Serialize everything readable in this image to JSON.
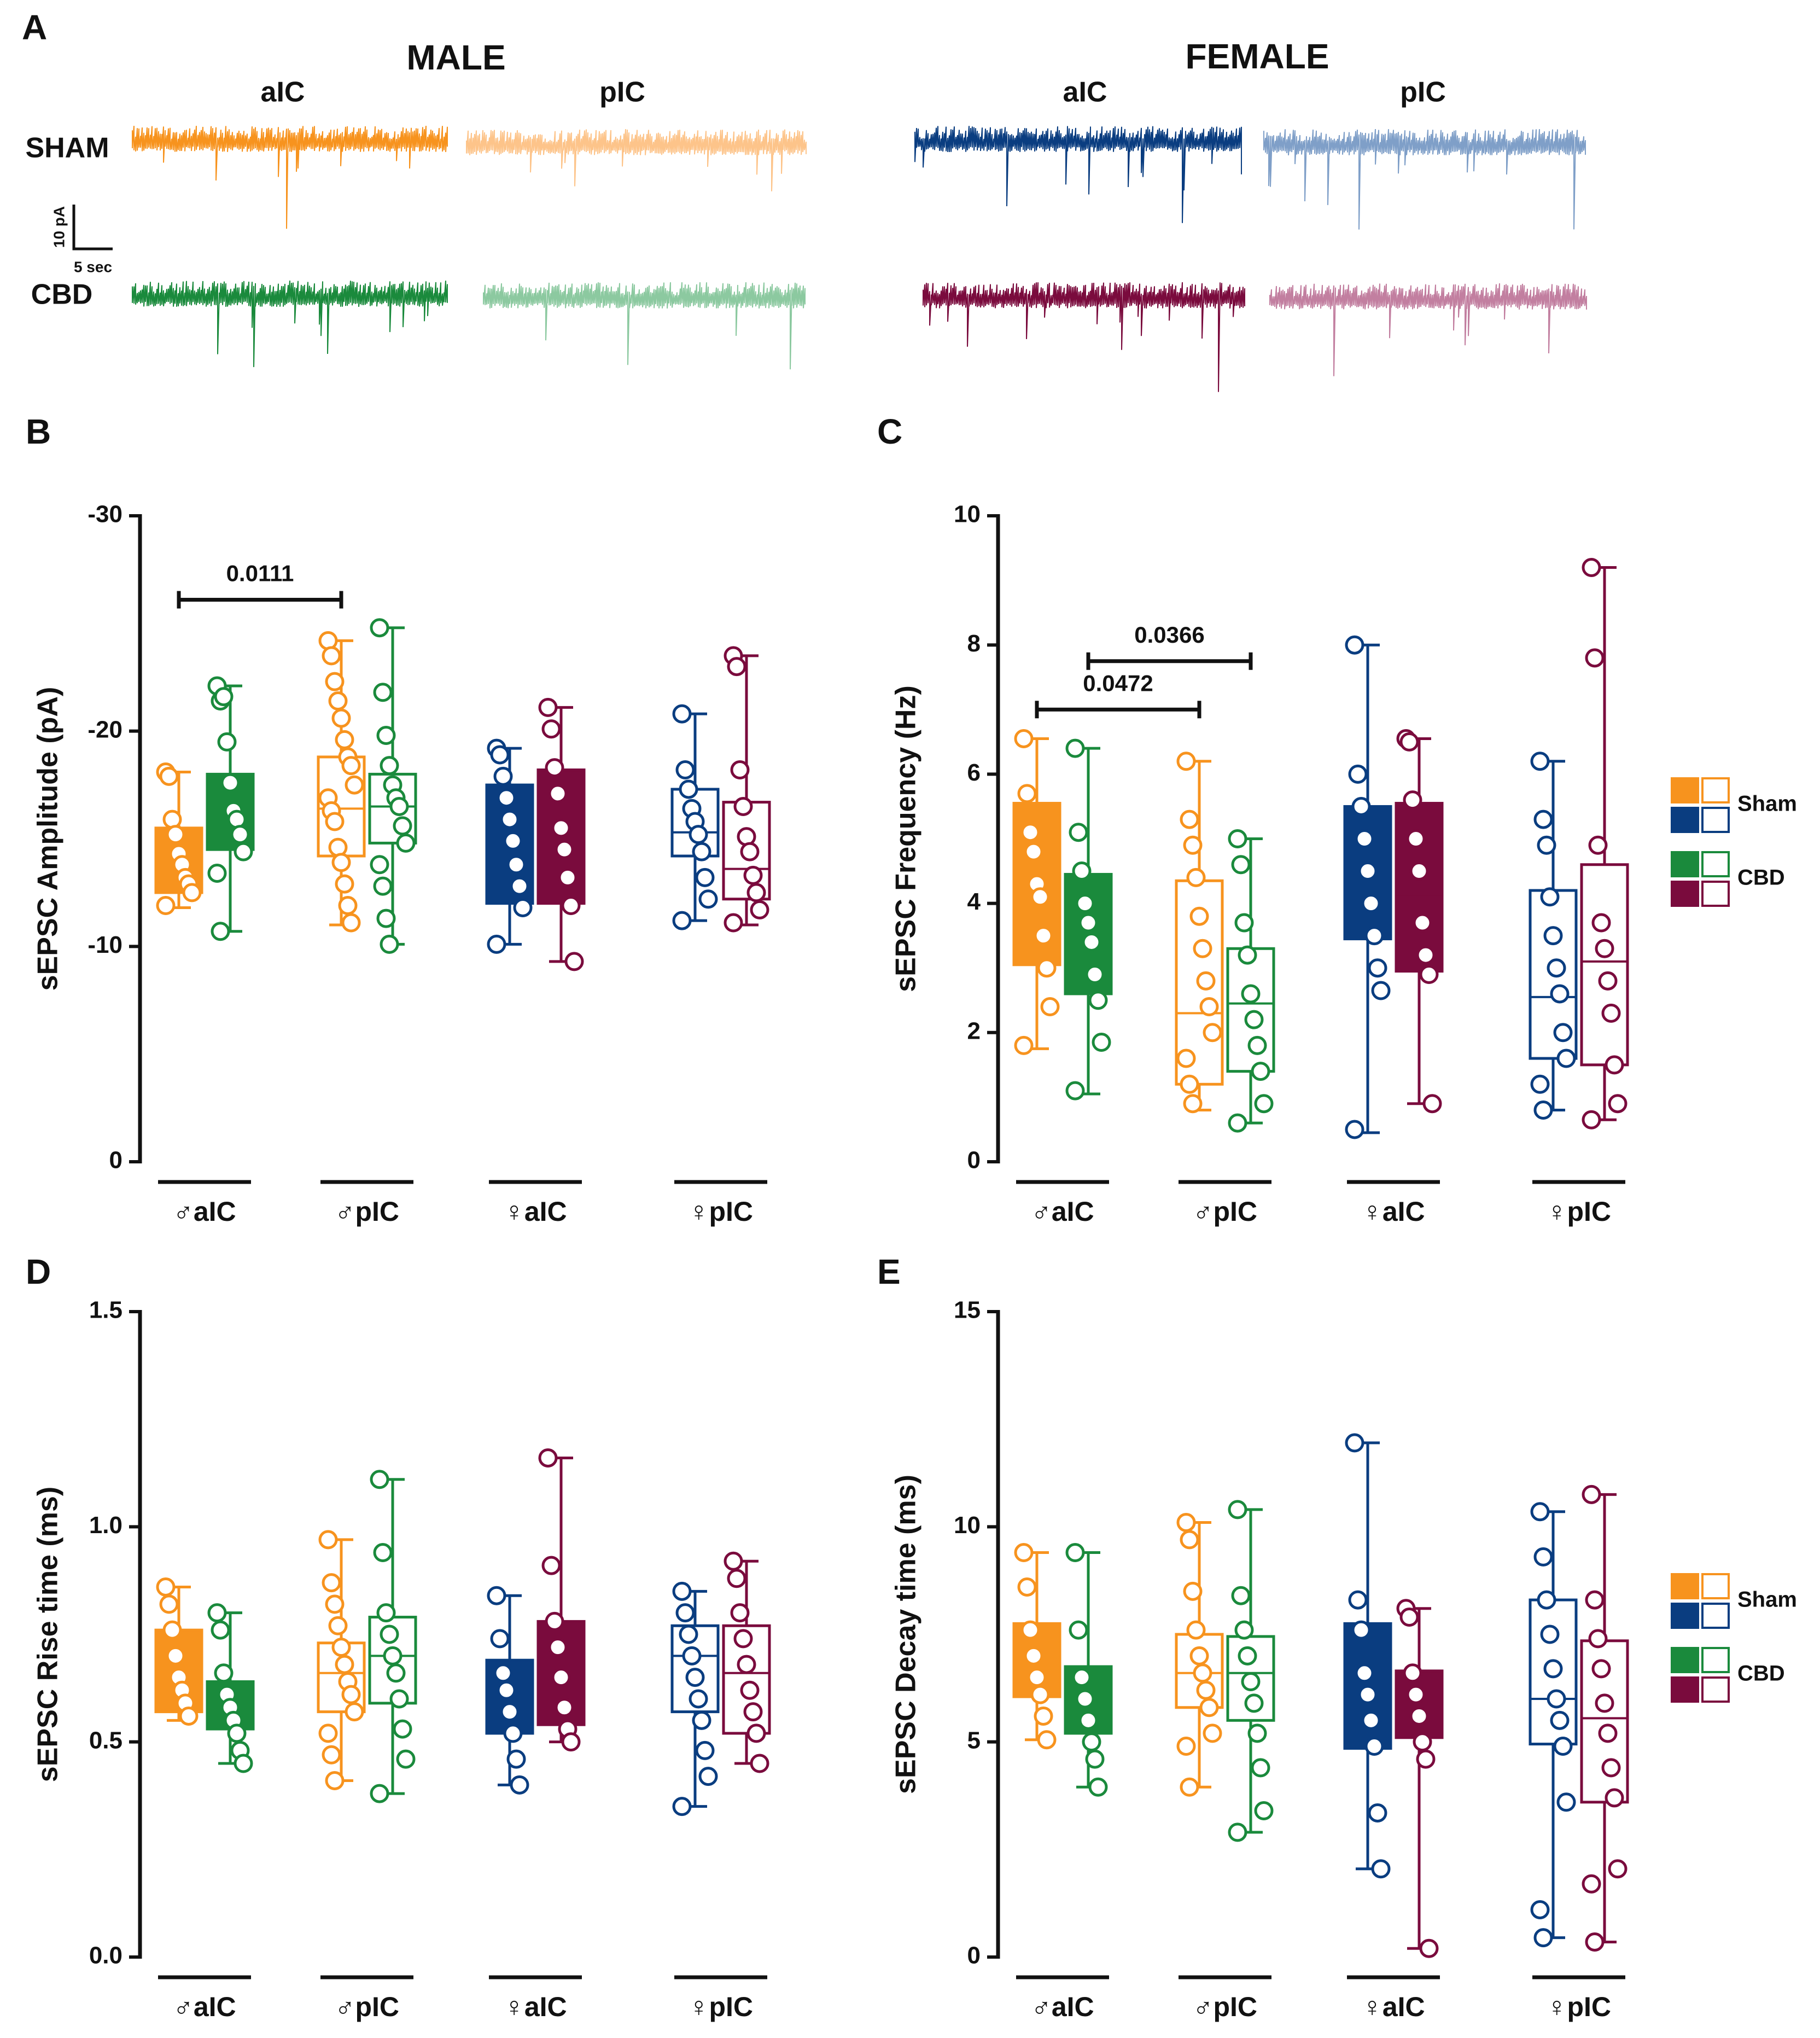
{
  "panel_a": {
    "label": "A",
    "sexes": [
      "MALE",
      "FEMALE"
    ],
    "regions": [
      "aIC",
      "pIC",
      "aIC",
      "pIC"
    ],
    "rows": [
      "SHAM",
      "CBD"
    ],
    "scale_y": "10 pA",
    "scale_x": "5 sec"
  },
  "chart_data": [
    {
      "type": "box",
      "panel": "B",
      "ylabel": "sEPSC Amplitude  (pA)",
      "ylim": [
        0,
        -30
      ],
      "yticks": [
        0,
        -10,
        -20,
        -30
      ],
      "categories": [
        "♂aIC",
        "♂pIC",
        "♀aIC",
        "♀pIC"
      ],
      "boxes": [
        {
          "color": "#f7931e",
          "filled": true,
          "stats": [
            -11.8,
            -12.5,
            -13.8,
            -15.5,
            -18.1
          ],
          "points": [
            -18.1,
            -17.9,
            -15.9,
            -15.2,
            -14.3,
            -13.8,
            -13.2,
            -12.9,
            -12.5,
            -11.9
          ]
        },
        {
          "color": "#1a8a3c",
          "filled": true,
          "stats": [
            -10.7,
            -14.5,
            -16,
            -18,
            -22.1
          ],
          "points": [
            -22.1,
            -21.4,
            -21.6,
            -19.5,
            -17.6,
            -16.3,
            -15.9,
            -15.2,
            -14.4,
            -13.4,
            -10.7
          ]
        },
        {
          "color": "#f7931e",
          "filled": false,
          "stats": [
            -11,
            -14.2,
            -16.4,
            -18.8,
            -24.2
          ],
          "points": [
            -24.2,
            -23.5,
            -22.3,
            -21.4,
            -20.6,
            -19.6,
            -18.8,
            -18.4,
            -17.5,
            -16.9,
            -16.3,
            -15.8,
            -14.6,
            -13.9,
            -12.9,
            -11.9,
            -11.1
          ]
        },
        {
          "color": "#1a8a3c",
          "filled": false,
          "stats": [
            -10.1,
            -14.8,
            -16.5,
            -18,
            -24.8
          ],
          "points": [
            -24.8,
            -21.8,
            -19.8,
            -18.4,
            -17.5,
            -16.9,
            -16.5,
            -15.6,
            -14.8,
            -13.8,
            -12.8,
            -11.3,
            -10.1
          ]
        },
        {
          "color": "#0a3d80",
          "filled": true,
          "stats": [
            -10.1,
            -12,
            -14.8,
            -17.5,
            -19.2
          ],
          "points": [
            -19.2,
            -18.9,
            -17.9,
            -16.9,
            -15.9,
            -14.9,
            -13.8,
            -12.8,
            -11.8,
            -10.1
          ]
        },
        {
          "color": "#7a0b3d",
          "filled": true,
          "stats": [
            -9.3,
            -12,
            -14.3,
            -18.2,
            -21.1
          ],
          "points": [
            -21.1,
            -20.1,
            -18.3,
            -17.1,
            -15.5,
            -14.5,
            -13.2,
            -11.9,
            -9.3
          ]
        },
        {
          "color": "#0a3d80",
          "filled": false,
          "stats": [
            -11.2,
            -14.2,
            -15.3,
            -17.3,
            -20.8
          ],
          "points": [
            -20.8,
            -18.2,
            -17.3,
            -16.4,
            -15.8,
            -15.2,
            -14.4,
            -13.2,
            -12.2,
            -11.2
          ]
        },
        {
          "color": "#7a0b3d",
          "filled": false,
          "stats": [
            -11,
            -12.2,
            -13.6,
            -16.7,
            -23.5
          ],
          "points": [
            -23.5,
            -23,
            -18.2,
            -16.5,
            -15.1,
            -14.4,
            -13.3,
            -12.5,
            -11.7,
            -11.1
          ]
        }
      ],
      "annotations": [
        {
          "label": "0.0111",
          "boxes": [
            0,
            2
          ],
          "y": -26.1
        }
      ]
    },
    {
      "type": "box",
      "panel": "C",
      "ylabel": "sEPSC Frequency  (Hz)",
      "ylim": [
        0,
        10
      ],
      "yticks": [
        0,
        2,
        4,
        6,
        8,
        10
      ],
      "categories": [
        "♂aIC",
        "♂pIC",
        "♀aIC",
        "♀pIC"
      ],
      "boxes": [
        {
          "color": "#f7931e",
          "filled": true,
          "stats": [
            1.75,
            3.05,
            4.2,
            5.55,
            6.55
          ],
          "points": [
            6.55,
            5.7,
            5.1,
            4.8,
            4.3,
            4.1,
            3.5,
            3.0,
            2.4,
            1.8
          ]
        },
        {
          "color": "#1a8a3c",
          "filled": true,
          "stats": [
            1.05,
            2.6,
            3.6,
            4.45,
            6.4
          ],
          "points": [
            6.4,
            5.1,
            4.5,
            4.0,
            3.7,
            3.4,
            2.9,
            2.5,
            1.85,
            1.1
          ]
        },
        {
          "color": "#f7931e",
          "filled": false,
          "stats": [
            0.8,
            1.2,
            2.3,
            4.35,
            6.2
          ],
          "points": [
            6.2,
            5.3,
            4.9,
            4.4,
            3.8,
            3.3,
            2.8,
            2.4,
            2.0,
            1.6,
            1.2,
            0.9
          ]
        },
        {
          "color": "#1a8a3c",
          "filled": false,
          "stats": [
            0.6,
            1.4,
            2.45,
            3.3,
            5
          ],
          "points": [
            5.0,
            4.6,
            3.7,
            3.2,
            2.6,
            2.2,
            1.8,
            1.4,
            0.9,
            0.6
          ]
        },
        {
          "color": "#0a3d80",
          "filled": true,
          "stats": [
            0.45,
            3.45,
            4.35,
            5.5,
            8
          ],
          "points": [
            8.0,
            6.0,
            5.5,
            5.0,
            4.5,
            4.0,
            3.5,
            3.0,
            2.65,
            0.5
          ]
        },
        {
          "color": "#7a0b3d",
          "filled": true,
          "stats": [
            0.9,
            2.95,
            4.1,
            5.55,
            6.55
          ],
          "points": [
            6.55,
            6.5,
            5.6,
            5.0,
            4.5,
            3.7,
            3.2,
            2.9,
            0.9
          ]
        },
        {
          "color": "#0a3d80",
          "filled": false,
          "stats": [
            0.8,
            1.6,
            2.55,
            4.2,
            6.2
          ],
          "points": [
            6.2,
            5.3,
            4.9,
            4.1,
            3.5,
            3.0,
            2.6,
            2.0,
            1.6,
            1.2,
            0.8
          ]
        },
        {
          "color": "#7a0b3d",
          "filled": false,
          "stats": [
            0.65,
            1.5,
            3.1,
            4.6,
            9.2
          ],
          "points": [
            9.2,
            7.8,
            4.9,
            3.7,
            3.3,
            2.8,
            2.3,
            1.5,
            0.9,
            0.65
          ]
        }
      ],
      "annotations": [
        {
          "label": "0.0472",
          "boxes": [
            0,
            2
          ],
          "y": 7.0
        },
        {
          "label": "0.0366",
          "boxes": [
            1,
            3
          ],
          "y": 7.75
        }
      ],
      "legend": [
        {
          "name": "Sham",
          "colors": [
            "#f7931e",
            "#0a3d80"
          ]
        },
        {
          "name": "CBD",
          "colors": [
            "#1a8a3c",
            "#7a0b3d"
          ]
        }
      ]
    },
    {
      "type": "box",
      "panel": "D",
      "ylabel": "sEPSC Rise time  (ms)",
      "ylim": [
        0,
        1.5
      ],
      "yticks": [
        {
          "value": 0,
          "label": "0.0"
        },
        0.5,
        {
          "value": 1,
          "label": "1.0"
        },
        1.5
      ],
      "categories": [
        "♂aIC",
        "♂pIC",
        "♀aIC",
        "♀pIC"
      ],
      "boxes": [
        {
          "color": "#f7931e",
          "filled": true,
          "stats": [
            0.55,
            0.57,
            0.65,
            0.76,
            0.86
          ],
          "points": [
            0.86,
            0.82,
            0.76,
            0.7,
            0.65,
            0.62,
            0.59,
            0.56
          ]
        },
        {
          "color": "#1a8a3c",
          "filled": true,
          "stats": [
            0.45,
            0.53,
            0.59,
            0.64,
            0.8
          ],
          "points": [
            0.8,
            0.76,
            0.66,
            0.61,
            0.58,
            0.55,
            0.52,
            0.48,
            0.45
          ]
        },
        {
          "color": "#f7931e",
          "filled": false,
          "stats": [
            0.41,
            0.57,
            0.66,
            0.73,
            0.97
          ],
          "points": [
            0.97,
            0.87,
            0.82,
            0.77,
            0.72,
            0.68,
            0.64,
            0.61,
            0.57,
            0.52,
            0.47,
            0.41
          ]
        },
        {
          "color": "#1a8a3c",
          "filled": false,
          "stats": [
            0.38,
            0.59,
            0.7,
            0.79,
            1.11
          ],
          "points": [
            1.11,
            0.94,
            0.8,
            0.75,
            0.7,
            0.66,
            0.6,
            0.53,
            0.46,
            0.38
          ]
        },
        {
          "color": "#0a3d80",
          "filled": true,
          "stats": [
            0.4,
            0.52,
            0.6,
            0.69,
            0.84
          ],
          "points": [
            0.84,
            0.74,
            0.66,
            0.62,
            0.57,
            0.52,
            0.46,
            0.4
          ]
        },
        {
          "color": "#7a0b3d",
          "filled": true,
          "stats": [
            0.5,
            0.54,
            0.66,
            0.78,
            1.16
          ],
          "points": [
            1.16,
            0.91,
            0.78,
            0.72,
            0.65,
            0.58,
            0.53,
            0.5
          ]
        },
        {
          "color": "#0a3d80",
          "filled": false,
          "stats": [
            0.35,
            0.57,
            0.7,
            0.77,
            0.85
          ],
          "points": [
            0.85,
            0.8,
            0.75,
            0.7,
            0.65,
            0.6,
            0.55,
            0.48,
            0.42,
            0.35
          ]
        },
        {
          "color": "#7a0b3d",
          "filled": false,
          "stats": [
            0.45,
            0.52,
            0.66,
            0.77,
            0.92
          ],
          "points": [
            0.92,
            0.88,
            0.8,
            0.74,
            0.68,
            0.62,
            0.57,
            0.52,
            0.45
          ]
        }
      ]
    },
    {
      "type": "box",
      "panel": "E",
      "ylabel": "sEPSC Decay time  (ms)",
      "ylim": [
        0,
        15
      ],
      "yticks": [
        0,
        5,
        10,
        15
      ],
      "categories": [
        "♂aIC",
        "♂pIC",
        "♀aIC",
        "♀pIC"
      ],
      "boxes": [
        {
          "color": "#f7931e",
          "filled": true,
          "stats": [
            5.05,
            6.05,
            6.6,
            7.75,
            9.4
          ],
          "points": [
            9.4,
            8.6,
            7.6,
            7.0,
            6.5,
            6.1,
            5.6,
            5.05
          ]
        },
        {
          "color": "#1a8a3c",
          "filled": true,
          "stats": [
            3.95,
            5.2,
            5.9,
            6.75,
            9.4
          ],
          "points": [
            9.4,
            7.6,
            6.5,
            6.0,
            5.5,
            5.0,
            4.6,
            3.95
          ]
        },
        {
          "color": "#f7931e",
          "filled": false,
          "stats": [
            3.95,
            5.8,
            6.6,
            7.5,
            10.1
          ],
          "points": [
            10.1,
            9.7,
            8.5,
            7.6,
            7.0,
            6.6,
            6.2,
            5.8,
            5.2,
            4.9,
            3.95
          ]
        },
        {
          "color": "#1a8a3c",
          "filled": false,
          "stats": [
            2.9,
            5.5,
            6.6,
            7.45,
            10.4
          ],
          "points": [
            10.4,
            8.4,
            7.6,
            7.0,
            6.4,
            5.9,
            5.2,
            4.4,
            3.4,
            2.9
          ]
        },
        {
          "color": "#0a3d80",
          "filled": true,
          "stats": [
            2.05,
            4.85,
            6.05,
            7.75,
            11.95
          ],
          "points": [
            11.95,
            8.3,
            7.6,
            6.6,
            6.1,
            5.5,
            4.9,
            3.35,
            2.05
          ]
        },
        {
          "color": "#7a0b3d",
          "filled": true,
          "stats": [
            0.2,
            5.1,
            5.6,
            6.65,
            8.1
          ],
          "points": [
            8.1,
            7.9,
            6.6,
            6.1,
            5.6,
            5.0,
            4.6,
            0.2
          ]
        },
        {
          "color": "#0a3d80",
          "filled": false,
          "stats": [
            0.45,
            4.95,
            6.0,
            8.3,
            10.35
          ],
          "points": [
            10.35,
            9.3,
            8.3,
            7.5,
            6.7,
            6.0,
            5.5,
            4.9,
            3.6,
            1.1,
            0.45
          ]
        },
        {
          "color": "#7a0b3d",
          "filled": false,
          "stats": [
            0.35,
            3.6,
            5.55,
            7.35,
            10.75
          ],
          "points": [
            10.75,
            8.3,
            7.4,
            6.7,
            5.9,
            5.2,
            4.4,
            3.7,
            2.05,
            1.7,
            0.35
          ]
        }
      ],
      "legend": [
        {
          "name": "Sham",
          "colors": [
            "#f7931e",
            "#0a3d80"
          ]
        },
        {
          "name": "CBD",
          "colors": [
            "#1a8a3c",
            "#7a0b3d"
          ]
        }
      ]
    }
  ]
}
